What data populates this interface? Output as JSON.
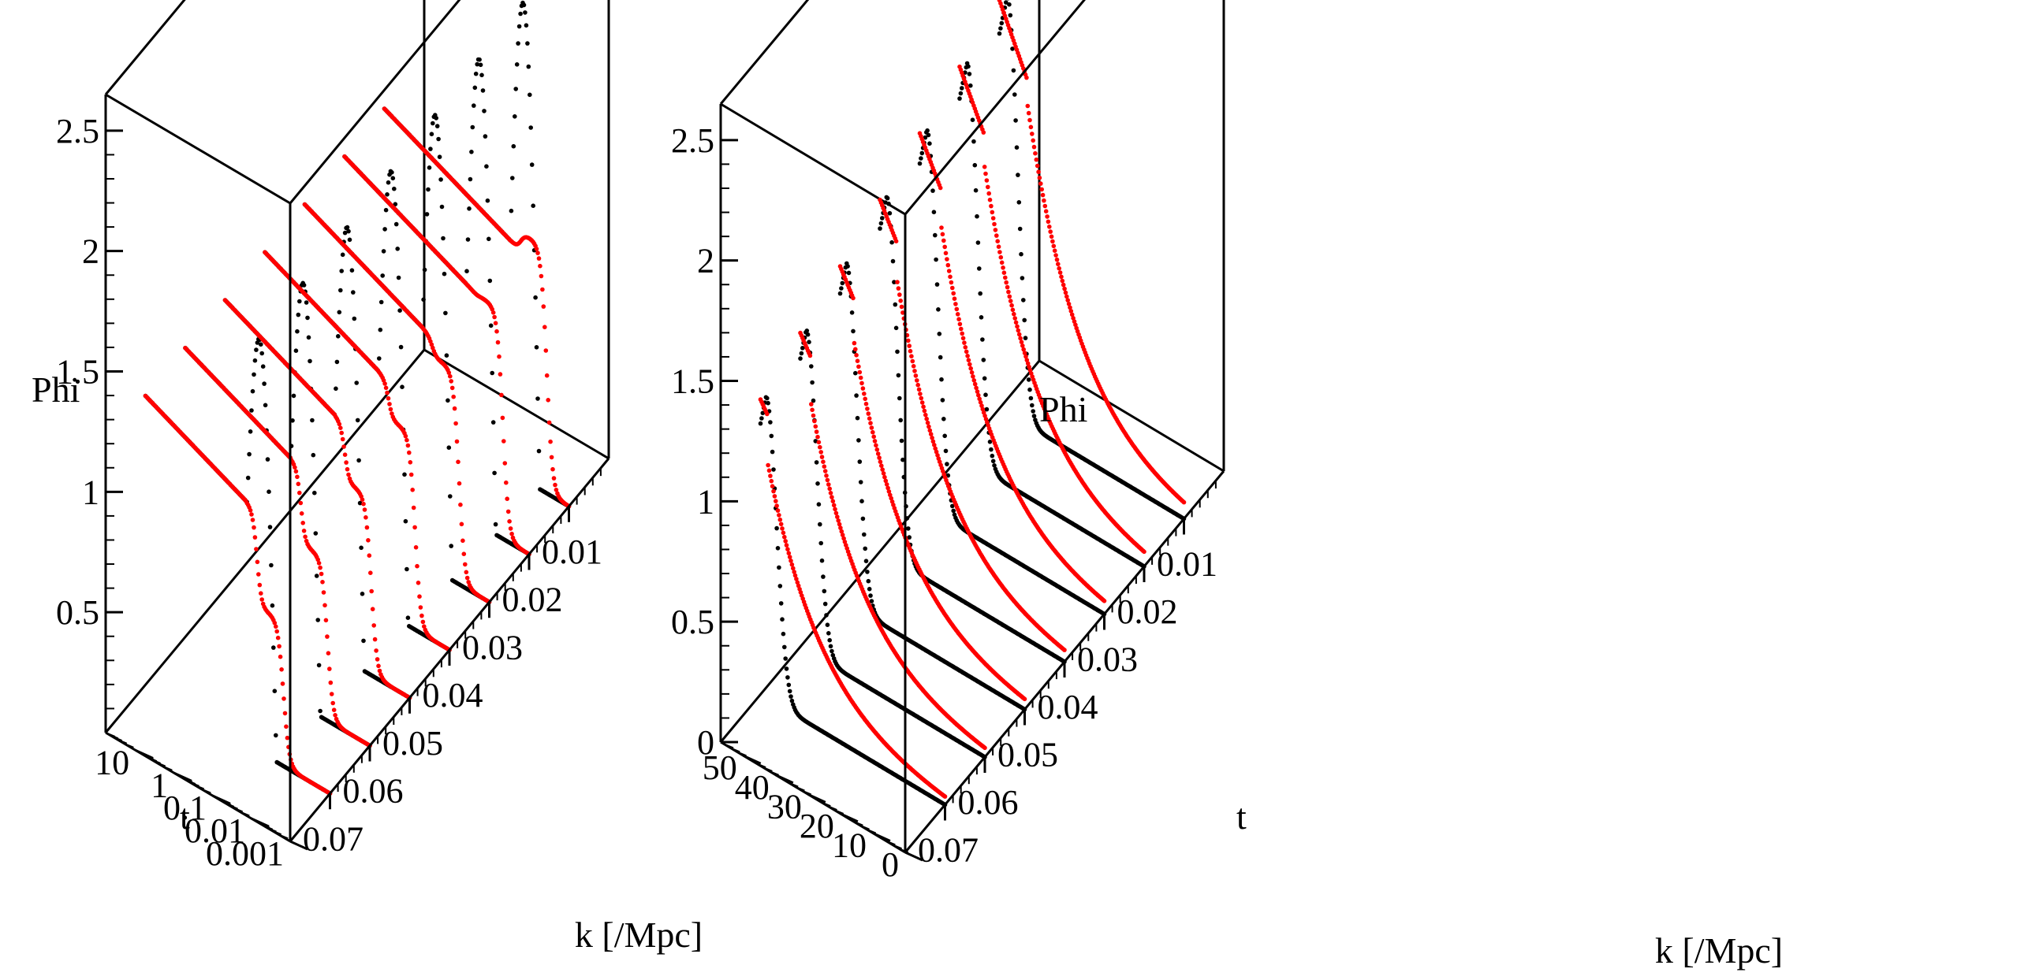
{
  "chart_data": [
    {
      "type": "scatter3d",
      "title": "",
      "zlabel": "Phi",
      "ylabel": "t",
      "xlabel": "k [/Mpc]",
      "t_scale": "log",
      "k_ticks": [
        "0.07",
        "0.06",
        "0.05",
        "0.04",
        "0.03",
        "0.02",
        "0.01"
      ],
      "t_ticks": [
        "0.001",
        "0.01",
        "0.1",
        "1",
        "10"
      ],
      "z_ticks": [
        "0.5",
        "1",
        "1.5",
        "2",
        "2.5"
      ],
      "k_range": [
        0.08,
        0.0
      ],
      "t_range": [
        0.001,
        60
      ],
      "z_range": [
        0,
        2.65
      ],
      "k_values": [
        0.07,
        0.06,
        0.05,
        0.04,
        0.03,
        0.02,
        0.01
      ],
      "series": [
        {
          "name": "black-dotted",
          "color": "#000000",
          "points_per_curve": 160
        },
        {
          "name": "red-dotted",
          "color": "#ff0000",
          "points_per_curve": 160
        }
      ]
    },
    {
      "type": "scatter3d",
      "title": "",
      "zlabel": "Phi",
      "ylabel": "t",
      "xlabel": "k [/Mpc]",
      "t_scale": "linear",
      "k_ticks": [
        "0.07",
        "0.06",
        "0.05",
        "0.04",
        "0.03",
        "0.02",
        "0.01"
      ],
      "t_ticks": [
        "0",
        "10",
        "20",
        "30",
        "40",
        "50"
      ],
      "z_ticks": [
        "0",
        "0.5",
        "1",
        "1.5",
        "2",
        "2.5"
      ],
      "k_range": [
        0.08,
        0.0
      ],
      "t_range": [
        0,
        57
      ],
      "z_range": [
        0,
        2.65
      ],
      "k_values": [
        0.07,
        0.06,
        0.05,
        0.04,
        0.03,
        0.02,
        0.01
      ],
      "series": [
        {
          "name": "black-dotted",
          "color": "#000000",
          "points_per_curve": 170
        },
        {
          "name": "red-dotted",
          "color": "#ff0000",
          "points_per_curve": 170
        }
      ]
    }
  ]
}
